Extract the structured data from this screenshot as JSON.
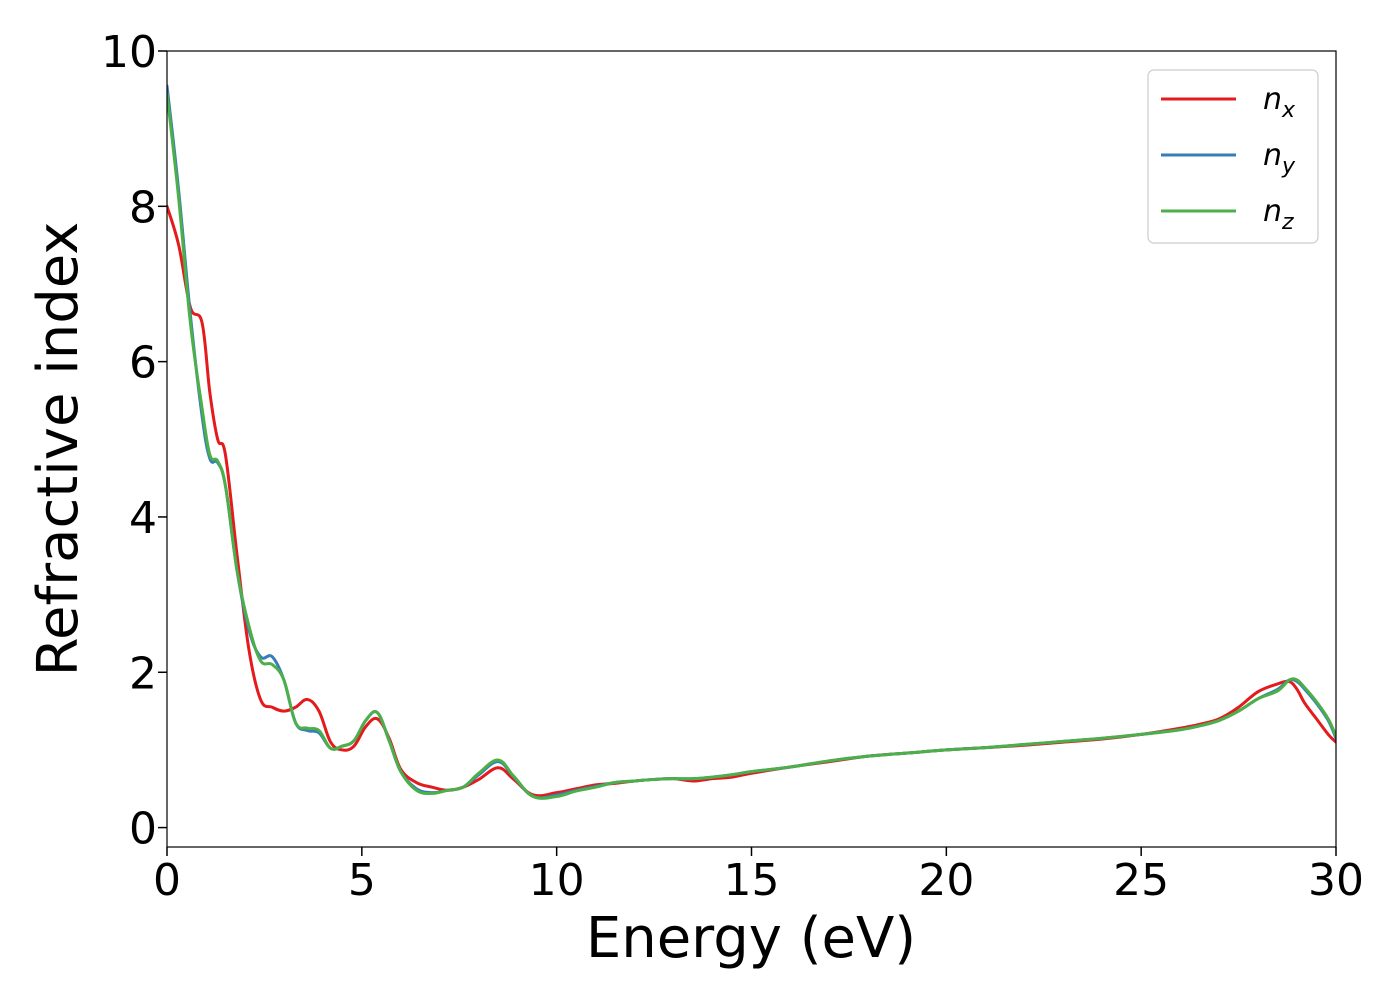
{
  "chart_data": {
    "type": "line",
    "xlabel": "Energy (eV)",
    "ylabel": "Refractive index",
    "xlim": [
      0,
      30
    ],
    "ylim": [
      -0.25,
      10
    ],
    "xticks": [
      0,
      5,
      10,
      15,
      20,
      25,
      30
    ],
    "xtick_labels": [
      "0",
      "5",
      "10",
      "15",
      "20",
      "25",
      "30"
    ],
    "yticks": [
      0,
      2,
      4,
      6,
      8,
      10
    ],
    "ytick_labels": [
      "0",
      "2",
      "4",
      "6",
      "8",
      "10"
    ],
    "grid": false,
    "legend_position": "top-right",
    "series": [
      {
        "name": "n",
        "subscript": "x",
        "color": "#e41a1c",
        "x": [
          0,
          0.3,
          0.6,
          0.9,
          1.1,
          1.3,
          1.5,
          1.8,
          2.1,
          2.4,
          2.7,
          3.0,
          3.3,
          3.6,
          3.9,
          4.2,
          4.5,
          4.8,
          5.1,
          5.4,
          5.7,
          6.0,
          6.4,
          6.8,
          7.2,
          7.6,
          8.0,
          8.5,
          8.9,
          9.4,
          10.0,
          10.5,
          11.0,
          11.5,
          12.0,
          12.5,
          13.0,
          13.5,
          14.0,
          14.5,
          15.0,
          16.0,
          17.0,
          18.0,
          19.0,
          20.0,
          21.0,
          22.0,
          23.0,
          24.0,
          25.0,
          26.0,
          26.5,
          27.0,
          27.5,
          28.0,
          28.5,
          28.8,
          29.0,
          29.2,
          29.5,
          29.8,
          30.0
        ],
        "y": [
          8.0,
          7.5,
          6.7,
          6.5,
          5.6,
          5.0,
          4.8,
          3.5,
          2.3,
          1.65,
          1.55,
          1.5,
          1.55,
          1.65,
          1.5,
          1.1,
          1.0,
          1.05,
          1.3,
          1.4,
          1.15,
          0.75,
          0.58,
          0.52,
          0.48,
          0.52,
          0.62,
          0.77,
          0.62,
          0.42,
          0.45,
          0.5,
          0.55,
          0.57,
          0.6,
          0.62,
          0.63,
          0.6,
          0.63,
          0.65,
          0.7,
          0.78,
          0.85,
          0.92,
          0.96,
          1.0,
          1.03,
          1.06,
          1.1,
          1.14,
          1.2,
          1.28,
          1.33,
          1.4,
          1.55,
          1.75,
          1.85,
          1.88,
          1.78,
          1.6,
          1.4,
          1.2,
          1.1
        ]
      },
      {
        "name": "n",
        "subscript": "y",
        "color": "#377eb8",
        "x": [
          0,
          0.3,
          0.6,
          0.9,
          1.1,
          1.3,
          1.5,
          1.8,
          2.1,
          2.4,
          2.7,
          3.0,
          3.3,
          3.6,
          3.9,
          4.2,
          4.5,
          4.8,
          5.1,
          5.4,
          5.7,
          6.0,
          6.4,
          6.8,
          7.2,
          7.6,
          8.0,
          8.5,
          8.9,
          9.4,
          10.0,
          10.5,
          11.0,
          11.5,
          12.0,
          12.5,
          13.0,
          13.5,
          14.0,
          14.5,
          15.0,
          16.0,
          17.0,
          18.0,
          19.0,
          20.0,
          21.0,
          22.0,
          23.0,
          24.0,
          25.0,
          26.0,
          26.5,
          27.0,
          27.5,
          28.0,
          28.5,
          28.8,
          29.0,
          29.2,
          29.5,
          29.8,
          30.0
        ],
        "y": [
          9.55,
          8.2,
          6.6,
          5.3,
          4.75,
          4.7,
          4.4,
          3.3,
          2.55,
          2.2,
          2.2,
          1.9,
          1.35,
          1.25,
          1.22,
          1.02,
          1.05,
          1.12,
          1.38,
          1.48,
          1.12,
          0.72,
          0.5,
          0.45,
          0.48,
          0.52,
          0.68,
          0.85,
          0.65,
          0.4,
          0.42,
          0.48,
          0.53,
          0.58,
          0.6,
          0.62,
          0.63,
          0.63,
          0.65,
          0.68,
          0.72,
          0.78,
          0.86,
          0.92,
          0.96,
          1.0,
          1.03,
          1.07,
          1.11,
          1.15,
          1.2,
          1.26,
          1.31,
          1.38,
          1.5,
          1.66,
          1.78,
          1.9,
          1.88,
          1.78,
          1.6,
          1.38,
          1.15
        ]
      },
      {
        "name": "n",
        "subscript": "z",
        "color": "#4daf4a",
        "x": [
          0,
          0.3,
          0.6,
          0.9,
          1.1,
          1.3,
          1.5,
          1.8,
          2.1,
          2.4,
          2.7,
          3.0,
          3.3,
          3.6,
          3.9,
          4.2,
          4.5,
          4.8,
          5.1,
          5.4,
          5.7,
          6.0,
          6.4,
          6.8,
          7.2,
          7.6,
          8.0,
          8.5,
          8.9,
          9.4,
          10.0,
          10.5,
          11.0,
          11.5,
          12.0,
          12.5,
          13.0,
          13.5,
          14.0,
          14.5,
          15.0,
          16.0,
          17.0,
          18.0,
          19.0,
          20.0,
          21.0,
          22.0,
          23.0,
          24.0,
          25.0,
          26.0,
          26.5,
          27.0,
          27.5,
          28.0,
          28.5,
          28.8,
          29.0,
          29.2,
          29.5,
          29.8,
          30.0
        ],
        "y": [
          9.45,
          8.1,
          6.5,
          5.4,
          4.8,
          4.72,
          4.4,
          3.3,
          2.6,
          2.15,
          2.1,
          1.9,
          1.35,
          1.28,
          1.25,
          1.02,
          1.05,
          1.12,
          1.38,
          1.48,
          1.12,
          0.72,
          0.48,
          0.44,
          0.48,
          0.52,
          0.7,
          0.87,
          0.66,
          0.4,
          0.4,
          0.47,
          0.52,
          0.58,
          0.6,
          0.62,
          0.63,
          0.63,
          0.65,
          0.68,
          0.72,
          0.78,
          0.86,
          0.92,
          0.96,
          1.0,
          1.03,
          1.07,
          1.11,
          1.15,
          1.2,
          1.26,
          1.31,
          1.38,
          1.5,
          1.66,
          1.76,
          1.9,
          1.9,
          1.8,
          1.62,
          1.4,
          1.18
        ]
      }
    ]
  }
}
